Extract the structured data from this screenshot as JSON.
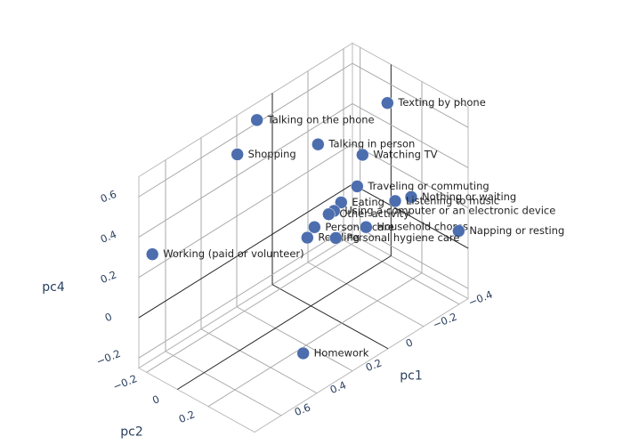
{
  "chart_data": {
    "type": "scatter3d",
    "x_label": "pc1",
    "y_label": "pc2",
    "z_label": "pc4",
    "labels": [
      "Texting by phone",
      "Talking on the phone",
      "Talking in person",
      "Shopping",
      "Watching TV",
      "Traveling or commuting",
      "Nothing or waiting",
      "Listening to music",
      "Eating",
      "Using a computer or an electronic device",
      "Other activity",
      "Personal care",
      "Household chores",
      "Napping or resting",
      "Reading",
      "Personal hygiene care",
      "Working (paid or volunteer)",
      "Homework"
    ],
    "x": [
      -0.43,
      0.13,
      -0.04,
      0.24,
      -0.29,
      -0.26,
      -0.39,
      -0.3,
      -0.17,
      -0.13,
      -0.1,
      -0.02,
      -0.31,
      -0.44,
      0.02,
      -0.14,
      0.7,
      0.39
    ],
    "y": [
      0,
      -0.2,
      0,
      -0.2,
      0,
      0,
      0.2,
      0.2,
      0,
      0,
      0,
      0,
      0,
      0.45,
      0,
      0,
      -0.22,
      0.4
    ],
    "z": [
      0.52,
      0.66,
      0.53,
      0.55,
      0.34,
      0.2,
      0.16,
      0.19,
      0.17,
      0.15,
      0.15,
      0.13,
      -0.03,
      0.07,
      0.1,
      0.01,
      0.3,
      -0.1
    ],
    "color": "#4c6eae",
    "xlim": [
      -0.45,
      0.75
    ],
    "ylim": [
      -0.25,
      0.5
    ],
    "zlim": [
      -0.25,
      0.7
    ],
    "xticks": [
      {
        "value": -0.4,
        "label": "−0.4"
      },
      {
        "value": -0.2,
        "label": "−0.2"
      },
      0,
      0.2,
      0.4,
      0.6
    ],
    "yticks": [
      {
        "value": -0.2,
        "label": "−0.2"
      },
      0,
      0.2
    ],
    "zticks": [
      {
        "value": -0.2,
        "label": "−0.2"
      },
      0,
      0.2,
      0.4,
      0.6
    ],
    "grid": true,
    "zeroline": true
  }
}
